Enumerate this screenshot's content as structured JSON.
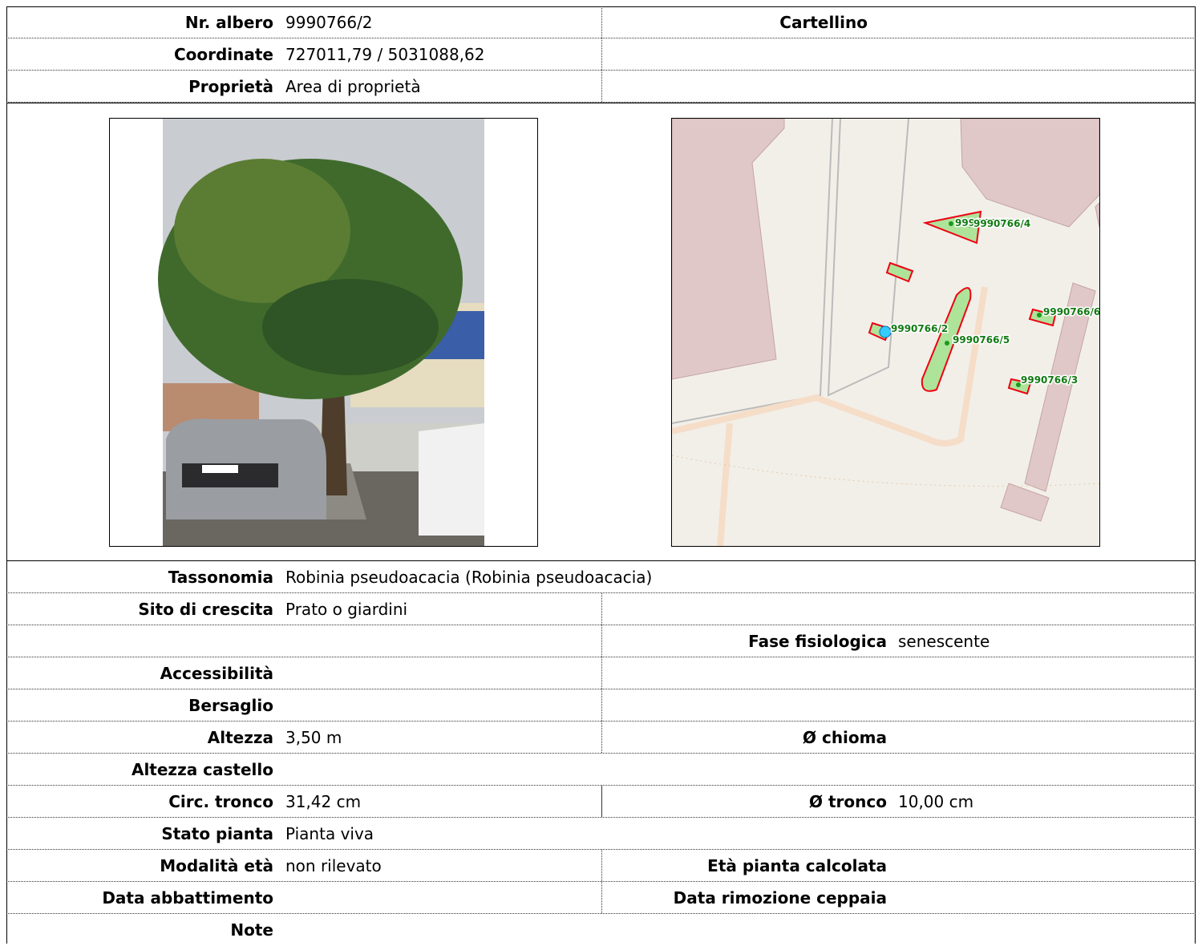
{
  "rows": [
    {
      "label": "Nr. albero",
      "value": "9990766/2",
      "right_label": "Cartellino"
    },
    {
      "label": "Coordinate",
      "value": "727011,79 / 5031088,62"
    },
    {
      "label": "Proprietà",
      "value": "Area di proprietà"
    },
    {
      "label": "Tassonomia",
      "value": "Robinia pseudoacacia (Robinia pseudoacacia)"
    },
    {
      "label": "Sito di crescita",
      "value": "Prato o giardini"
    },
    {
      "right_label": "Fase fisiologica",
      "right_value": "senescente"
    },
    {
      "label": "Accessibilità"
    },
    {
      "label": "Bersaglio"
    },
    {
      "label": "Altezza",
      "value": "3,50 m",
      "right_label": "Ø chioma"
    },
    {
      "label": "Altezza castello"
    },
    {
      "label": "Circ. tronco",
      "value": "31,42 cm",
      "right_label": "Ø tronco",
      "right_value": "10,00 cm"
    },
    {
      "label": "Stato pianta",
      "value": "Pianta viva"
    },
    {
      "label": "Modalità età",
      "value": "non rilevato",
      "right_label": "Età pianta calcolata"
    },
    {
      "label": "Data abbattimento",
      "right_label": "Data rimozione ceppaia"
    },
    {
      "label": "Note"
    }
  ],
  "map": {
    "labels": [
      "9990766/8",
      "9990766/4",
      "9990766/6",
      "9990766/2",
      "9990766/5",
      "9990766/3"
    ]
  }
}
